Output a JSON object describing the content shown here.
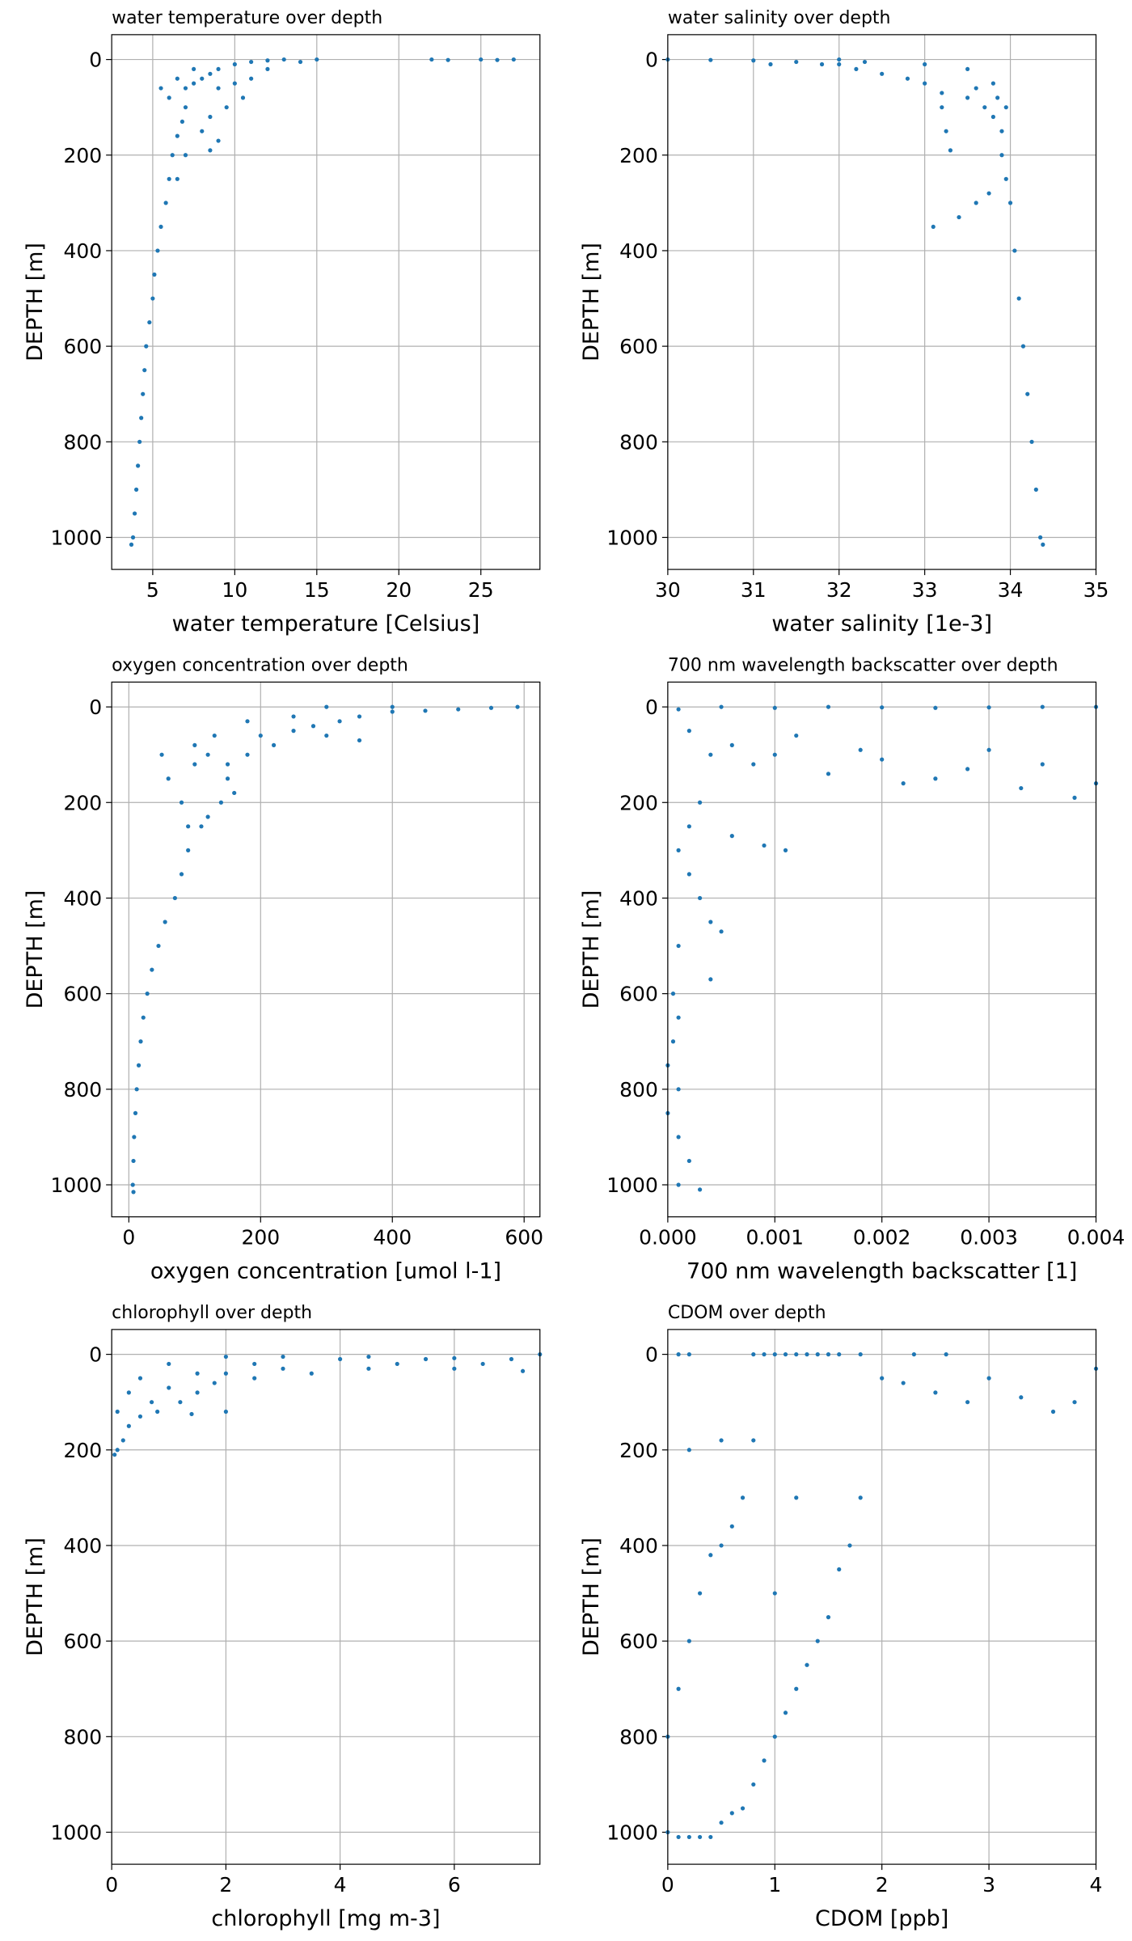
{
  "chart_data": [
    {
      "type": "scatter",
      "title": "water temperature over depth",
      "xlabel": "water temperature [Celsius]",
      "ylabel": "DEPTH [m]",
      "color": "#1f77b4",
      "grid": true,
      "xlim": [
        2.5,
        28.6
      ],
      "ylim": [
        1067,
        -52
      ],
      "xticks": [
        5,
        10,
        15,
        20,
        25
      ],
      "yticks": [
        0,
        200,
        400,
        600,
        800,
        1000
      ],
      "x": [
        27,
        25,
        22,
        15,
        13,
        12,
        11,
        10,
        9,
        8.5,
        8,
        7.5,
        7,
        9,
        10,
        11,
        12,
        10.5,
        9.5,
        8.5,
        8,
        9,
        8.5,
        7,
        6.8,
        6.5,
        6.2,
        7,
        6,
        6.5,
        5.8,
        5.5,
        5.3,
        5.1,
        5,
        4.8,
        4.6,
        4.5,
        4.4,
        4.3,
        4.2,
        4.1,
        4,
        3.9,
        3.8,
        3.7,
        6,
        5.5,
        6.5,
        7.5,
        14,
        26,
        23
      ],
      "values": [
        0,
        0,
        0,
        0,
        0,
        2,
        5,
        10,
        20,
        30,
        40,
        50,
        60,
        60,
        50,
        40,
        20,
        80,
        100,
        120,
        150,
        170,
        190,
        100,
        130,
        160,
        200,
        200,
        250,
        250,
        300,
        350,
        400,
        450,
        500,
        550,
        600,
        650,
        700,
        750,
        800,
        850,
        900,
        950,
        1000,
        1015,
        80,
        60,
        40,
        20,
        5,
        1,
        1
      ]
    },
    {
      "type": "scatter",
      "title": "water salinity over depth",
      "xlabel": "water salinity [1e-3]",
      "ylabel": "DEPTH [m]",
      "color": "#1f77b4",
      "grid": true,
      "xlim": [
        30,
        35
      ],
      "ylim": [
        1067,
        -52
      ],
      "xticks": [
        30,
        31,
        32,
        33,
        34,
        35
      ],
      "yticks": [
        0,
        200,
        400,
        600,
        800,
        1000
      ],
      "x": [
        30,
        30.5,
        31,
        31.5,
        31.8,
        32,
        32.2,
        32.5,
        32.8,
        33,
        33.2,
        33.5,
        33.7,
        33.8,
        33.9,
        33.9,
        33.95,
        34,
        34.05,
        34.1,
        34.15,
        34.2,
        34.25,
        34.3,
        34.35,
        34.38,
        33.2,
        33.25,
        33.3,
        33.1,
        33.4,
        33.6,
        33.75,
        32,
        33,
        33.5,
        33.8,
        33.95,
        31.2,
        32.3,
        33.6,
        33.85
      ],
      "values": [
        0,
        1,
        2,
        5,
        10,
        10,
        20,
        30,
        40,
        50,
        70,
        80,
        100,
        120,
        150,
        200,
        250,
        300,
        400,
        500,
        600,
        700,
        800,
        900,
        1000,
        1015,
        100,
        150,
        190,
        350,
        330,
        300,
        280,
        0,
        10,
        20,
        50,
        100,
        10,
        5,
        60,
        80
      ]
    },
    {
      "type": "scatter",
      "title": "oxygen concentration over depth",
      "xlabel": "oxygen concentration [umol l-1]",
      "ylabel": "DEPTH [m]",
      "color": "#1f77b4",
      "grid": true,
      "xlim": [
        -26,
        624
      ],
      "ylim": [
        1067,
        -52
      ],
      "xticks": [
        0,
        200,
        400,
        600
      ],
      "yticks": [
        0,
        200,
        400,
        600,
        800,
        1000
      ],
      "x": [
        590,
        550,
        500,
        450,
        400,
        350,
        300,
        320,
        280,
        250,
        300,
        350,
        220,
        200,
        180,
        150,
        120,
        100,
        50,
        60,
        150,
        140,
        120,
        110,
        90,
        80,
        70,
        55,
        45,
        35,
        28,
        22,
        18,
        15,
        12,
        10,
        8,
        7,
        6,
        7,
        400,
        250,
        180,
        130,
        100,
        160,
        80,
        90
      ],
      "values": [
        0,
        2,
        5,
        8,
        10,
        20,
        0,
        30,
        40,
        50,
        60,
        70,
        80,
        60,
        100,
        120,
        100,
        120,
        100,
        150,
        150,
        200,
        230,
        250,
        300,
        350,
        400,
        450,
        500,
        550,
        600,
        650,
        700,
        750,
        800,
        850,
        900,
        950,
        1000,
        1015,
        0,
        20,
        30,
        60,
        80,
        180,
        200,
        250
      ]
    },
    {
      "type": "scatter",
      "title": "700 nm wavelength backscatter over depth",
      "xlabel": "700 nm wavelength backscatter [1]",
      "ylabel": "DEPTH [m]",
      "color": "#1f77b4",
      "grid": true,
      "xlim": [
        0,
        0.004
      ],
      "ylim": [
        1067,
        -52
      ],
      "xticks": [
        {
          "value": 0,
          "label": "0.000"
        },
        {
          "value": 0.001,
          "label": "0.001"
        },
        {
          "value": 0.002,
          "label": "0.002"
        },
        {
          "value": 0.003,
          "label": "0.003"
        },
        {
          "value": 0.004,
          "label": "0.004"
        }
      ],
      "yticks": [
        0,
        200,
        400,
        600,
        800,
        1000
      ],
      "x": [
        0.004,
        0.0035,
        0.003,
        0.0025,
        0.002,
        0.0015,
        0.001,
        0.0005,
        0.0001,
        0.0002,
        0.0004,
        0.0006,
        0.0008,
        0.001,
        0.0012,
        0.0015,
        0.002,
        0.0025,
        0.003,
        0.0035,
        0.0038,
        0.004,
        0.0033,
        0.0028,
        0.0022,
        0.0018,
        0.0009,
        0.0011,
        0.0006,
        0.0003,
        0.0002,
        0.0001,
        0.0002,
        0.0003,
        0.0004,
        0.0005,
        0.0004,
        0.0001,
        5e-05,
        0.0001,
        5e-05,
        0,
        0.0001,
        0,
        0.0001,
        0.0002,
        0.0003,
        0.0001
      ],
      "values": [
        0,
        0,
        1,
        2,
        1,
        0,
        2,
        0,
        5,
        50,
        100,
        80,
        120,
        100,
        60,
        140,
        110,
        150,
        90,
        120,
        190,
        160,
        170,
        130,
        160,
        90,
        290,
        300,
        270,
        200,
        250,
        300,
        350,
        400,
        450,
        470,
        570,
        500,
        600,
        650,
        700,
        750,
        800,
        850,
        900,
        950,
        1010,
        1000
      ]
    },
    {
      "type": "scatter",
      "title": "chlorophyll over depth",
      "xlabel": "chlorophyll [mg m-3]",
      "ylabel": "DEPTH [m]",
      "color": "#1f77b4",
      "grid": true,
      "xlim": [
        0,
        7.5
      ],
      "ylim": [
        1067,
        -52
      ],
      "xticks": [
        0,
        2,
        4,
        6
      ],
      "yticks": [
        0,
        200,
        400,
        600,
        800,
        1000
      ],
      "x": [
        7.5,
        7,
        6.5,
        6,
        5.5,
        5,
        4.5,
        4,
        3.5,
        3,
        2.5,
        2,
        1.8,
        1.5,
        1.2,
        1,
        0.8,
        0.5,
        0.3,
        0.2,
        0.1,
        0.05,
        2,
        3,
        1,
        0.5,
        1.5,
        2.5,
        4.5,
        6,
        7.2,
        0.3,
        0.1,
        1.4,
        2,
        0.7
      ],
      "values": [
        0,
        10,
        20,
        30,
        10,
        20,
        30,
        10,
        40,
        30,
        50,
        40,
        60,
        80,
        100,
        70,
        120,
        130,
        150,
        180,
        200,
        210,
        5,
        5,
        20,
        50,
        40,
        20,
        5,
        8,
        35,
        80,
        120,
        125,
        120,
        100
      ]
    },
    {
      "type": "scatter",
      "title": "CDOM over depth",
      "xlabel": "CDOM [ppb]",
      "ylabel": "DEPTH [m]",
      "color": "#1f77b4",
      "grid": true,
      "xlim": [
        0,
        4
      ],
      "ylim": [
        1067,
        -52
      ],
      "xticks": [
        0,
        1,
        2,
        3,
        4
      ],
      "yticks": [
        0,
        200,
        400,
        600,
        800,
        1000
      ],
      "x": [
        0,
        0,
        0.1,
        0.1,
        0.2,
        0.2,
        0.2,
        0.3,
        0.3,
        0.4,
        0.4,
        0.5,
        0.5,
        0.6,
        0.6,
        0.7,
        0.7,
        0.8,
        0.8,
        0.9,
        0.9,
        1,
        1,
        1.1,
        1.1,
        1.2,
        1.2,
        1.3,
        1.3,
        1.4,
        1.4,
        1.5,
        1.5,
        1.6,
        1.6,
        1.7,
        1.8,
        1.8,
        2,
        2.2,
        2.5,
        2.8,
        3,
        3.3,
        3.6,
        3.8,
        4,
        2.3,
        2.6,
        0.5,
        0.8,
        0.1,
        0.2,
        1.2,
        1
      ],
      "values": [
        1000,
        800,
        1010,
        700,
        1010,
        600,
        200,
        1010,
        500,
        1010,
        420,
        980,
        400,
        960,
        360,
        950,
        300,
        900,
        0,
        850,
        0,
        800,
        0,
        750,
        0,
        700,
        0,
        650,
        0,
        600,
        0,
        550,
        0,
        450,
        0,
        400,
        300,
        0,
        50,
        60,
        80,
        100,
        50,
        90,
        120,
        100,
        30,
        0,
        0,
        180,
        180,
        0,
        0,
        300,
        500
      ]
    }
  ]
}
